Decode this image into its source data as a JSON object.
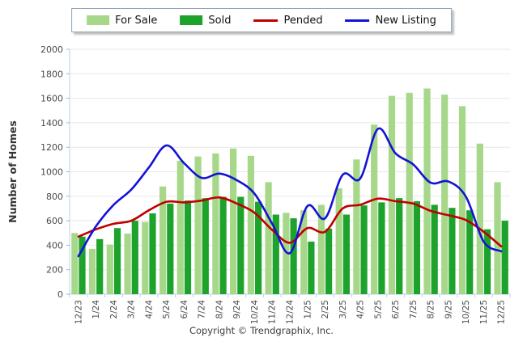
{
  "legend": {
    "items": [
      {
        "label": "For Sale",
        "type": "bar",
        "color": "#a7d789"
      },
      {
        "label": "Sold",
        "type": "bar",
        "color": "#1da32b"
      },
      {
        "label": "Pended",
        "type": "line",
        "color": "#c00000"
      },
      {
        "label": "New Listing",
        "type": "line",
        "color": "#1213d6"
      }
    ]
  },
  "footer": {
    "copyright": "Copyright © Trendgraphix, Inc."
  },
  "chart_data": {
    "type": "combo",
    "title": "",
    "xlabel": "",
    "ylabel": "Number of Homes",
    "ylim": [
      0,
      2000
    ],
    "ytick_step": 200,
    "grid": true,
    "legend_position": "top",
    "categories": [
      "12/23",
      "1/24",
      "2/24",
      "3/24",
      "4/24",
      "5/24",
      "6/24",
      "7/24",
      "8/24",
      "9/24",
      "10/24",
      "11/24",
      "12/24",
      "1/25",
      "2/25",
      "3/25",
      "4/25",
      "5/25",
      "6/25",
      "7/25",
      "8/25",
      "9/25",
      "10/25",
      "11/25",
      "12/25"
    ],
    "series": [
      {
        "name": "For Sale",
        "type": "bar",
        "color": "#a7d789",
        "values": [
          500,
          370,
          405,
          495,
          590,
          880,
          1090,
          1125,
          1150,
          1190,
          1130,
          915,
          665,
          685,
          730,
          865,
          1100,
          1385,
          1620,
          1645,
          1680,
          1630,
          1535,
          1230,
          915
        ]
      },
      {
        "name": "Sold",
        "type": "bar",
        "color": "#1da32b",
        "values": [
          470,
          450,
          540,
          600,
          660,
          740,
          765,
          785,
          795,
          795,
          755,
          650,
          620,
          430,
          535,
          650,
          725,
          750,
          785,
          760,
          730,
          705,
          685,
          530,
          600
        ]
      },
      {
        "name": "Pended",
        "type": "line",
        "color": "#c00000",
        "values": [
          470,
          530,
          575,
          600,
          685,
          755,
          750,
          765,
          790,
          740,
          665,
          525,
          420,
          540,
          510,
          700,
          730,
          780,
          760,
          740,
          680,
          645,
          605,
          510,
          390
        ]
      },
      {
        "name": "New Listing",
        "type": "line",
        "color": "#1213d6",
        "values": [
          310,
          555,
          730,
          855,
          1035,
          1215,
          1070,
          950,
          985,
          930,
          820,
          575,
          335,
          720,
          620,
          975,
          945,
          1350,
          1150,
          1060,
          910,
          920,
          795,
          430,
          350
        ]
      }
    ],
    "colors": {
      "gridline": "#e7e7e7",
      "axis": "#b9d2ea",
      "tick": "#8fb8e0",
      "tick_text": "#4a4a4a",
      "axis_title_text": "#333333"
    }
  }
}
